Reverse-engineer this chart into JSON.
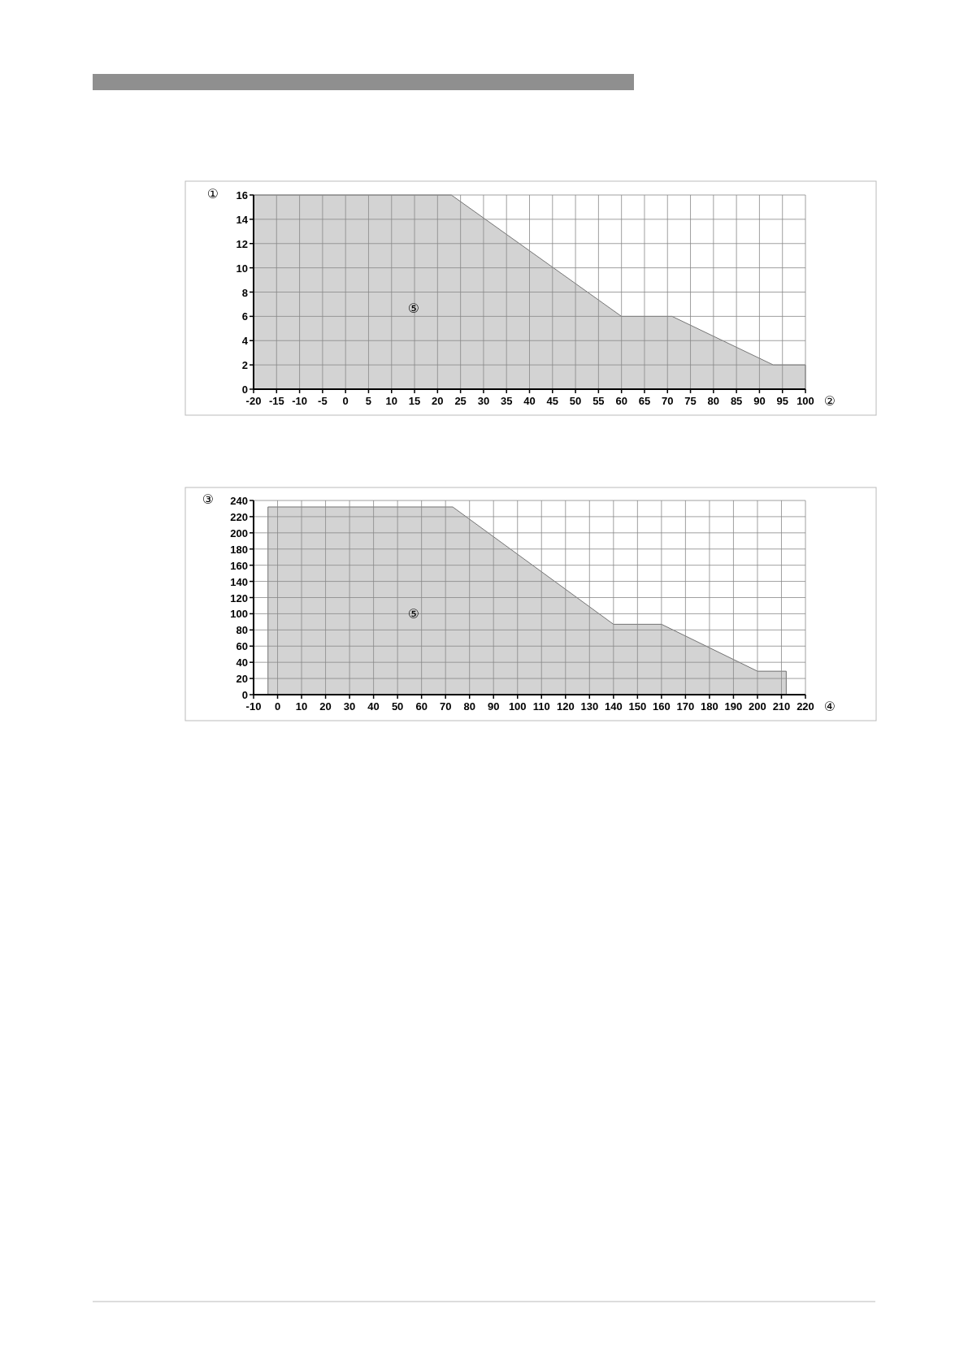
{
  "chart_data": [
    {
      "type": "area",
      "xlabel": "②",
      "ylabel": "①",
      "x": [
        -20,
        23,
        60,
        71,
        93,
        100
      ],
      "values": [
        16,
        16,
        6,
        6,
        2,
        2
      ],
      "color": "#d3d3d3",
      "xlim": [
        -20,
        100
      ],
      "xticks": [
        -20,
        -15,
        -10,
        -5,
        0,
        5,
        10,
        15,
        20,
        25,
        30,
        35,
        40,
        45,
        50,
        55,
        60,
        65,
        70,
        75,
        80,
        85,
        90,
        95,
        100
      ],
      "ylim": [
        0,
        16
      ],
      "yticks": [
        0,
        2,
        4,
        6,
        8,
        10,
        12,
        14,
        16
      ],
      "grid": true,
      "annotations": [
        "⑤"
      ]
    },
    {
      "type": "area",
      "xlabel": "④",
      "ylabel": "③",
      "x": [
        -4,
        73,
        140,
        160,
        200,
        212
      ],
      "values": [
        232,
        232,
        87,
        87,
        29,
        29
      ],
      "color": "#d3d3d3",
      "xlim": [
        -10,
        220
      ],
      "xticks": [
        -10,
        0,
        10,
        20,
        30,
        40,
        50,
        60,
        70,
        80,
        90,
        100,
        110,
        120,
        130,
        140,
        150,
        160,
        170,
        180,
        190,
        200,
        210,
        220
      ],
      "ylim": [
        0,
        240
      ],
      "yticks": [
        0,
        20,
        40,
        60,
        80,
        100,
        120,
        140,
        160,
        180,
        200,
        220,
        240
      ],
      "grid": true,
      "annotations": [
        "⑤"
      ]
    }
  ]
}
